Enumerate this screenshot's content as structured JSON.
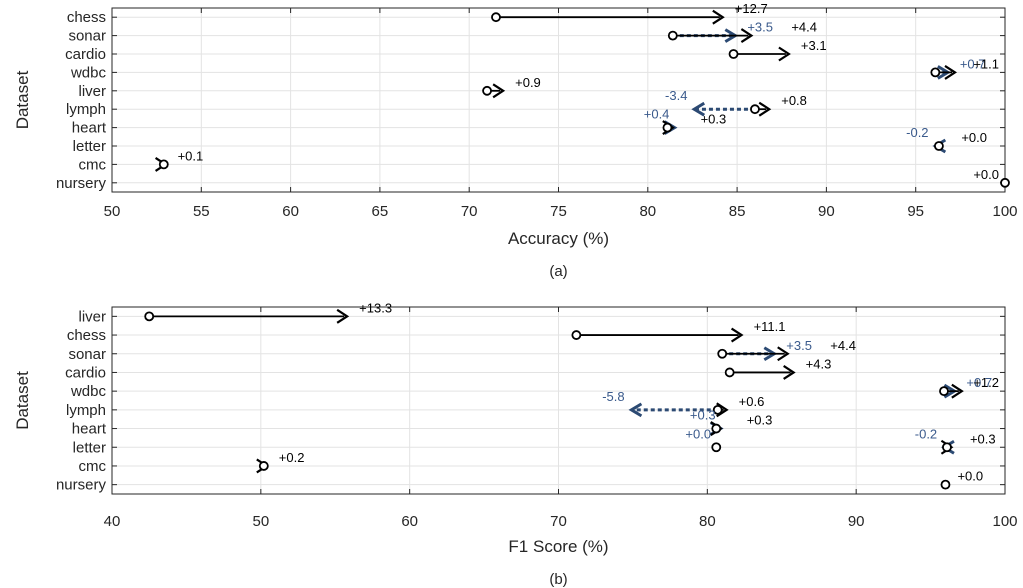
{
  "colors": {
    "solid": "#000000",
    "dashed": "#2c4a73",
    "dashed_label": "#3a5a8c"
  },
  "chart_data": [
    {
      "type": "arrow-dot",
      "panel_label": "(a)",
      "xlabel": "Accuracy (%)",
      "ylabel": "Dataset",
      "xlim": [
        50,
        100
      ],
      "xticks": [
        "50",
        "55",
        "60",
        "65",
        "70",
        "75",
        "80",
        "85",
        "90",
        "95",
        "100"
      ],
      "grid": true,
      "categories": [
        "chess",
        "sonar",
        "cardio",
        "wdbc",
        "liver",
        "lymph",
        "heart",
        "letter",
        "cmc",
        "nursery"
      ],
      "series": [
        {
          "style": "solid",
          "rows": [
            {
              "dataset": "chess",
              "start": 71.5,
              "end": 84.2,
              "label": "+12.7"
            },
            {
              "dataset": "sonar",
              "start": 81.4,
              "end": 85.8,
              "label": "+4.4"
            },
            {
              "dataset": "cardio",
              "start": 84.8,
              "end": 87.9,
              "label": "+3.1"
            },
            {
              "dataset": "wdbc",
              "start": 96.1,
              "end": 97.2,
              "label": "+1.1"
            },
            {
              "dataset": "liver",
              "start": 71.0,
              "end": 71.9,
              "label": "+0.9"
            },
            {
              "dataset": "lymph",
              "start": 86.0,
              "end": 86.8,
              "label": "+0.8"
            },
            {
              "dataset": "heart",
              "start": 81.1,
              "end": 81.4,
              "label": "+0.3"
            },
            {
              "dataset": "letter",
              "start": 96.3,
              "end": 96.3,
              "label": "+0.0"
            },
            {
              "dataset": "cmc",
              "start": 52.9,
              "end": 53.0,
              "label": "+0.1"
            },
            {
              "dataset": "nursery",
              "start": 100.0,
              "end": 100.0,
              "label": "+0.0"
            }
          ]
        },
        {
          "style": "dashed",
          "rows": [
            {
              "dataset": "sonar",
              "start": 81.4,
              "end": 84.9,
              "label": "+3.5"
            },
            {
              "dataset": "wdbc",
              "start": 96.1,
              "end": 96.8,
              "label": "+0.7"
            },
            {
              "dataset": "lymph",
              "start": 86.0,
              "end": 82.6,
              "label": "-3.4"
            },
            {
              "dataset": "heart",
              "start": 81.1,
              "end": 81.5,
              "label": "+0.4"
            },
            {
              "dataset": "letter",
              "start": 96.3,
              "end": 96.1,
              "label": "-0.2"
            }
          ]
        }
      ]
    },
    {
      "type": "arrow-dot",
      "panel_label": "(b)",
      "xlabel": "F1 Score (%)",
      "ylabel": "Dataset",
      "xlim": [
        40,
        100
      ],
      "xticks": [
        "40",
        "50",
        "60",
        "70",
        "80",
        "90",
        "100"
      ],
      "grid": true,
      "categories": [
        "liver",
        "chess",
        "sonar",
        "cardio",
        "wdbc",
        "lymph",
        "heart",
        "letter",
        "cmc",
        "nursery"
      ],
      "series": [
        {
          "style": "solid",
          "rows": [
            {
              "dataset": "liver",
              "start": 42.5,
              "end": 55.8,
              "label": "+13.3"
            },
            {
              "dataset": "chess",
              "start": 71.2,
              "end": 82.3,
              "label": "+11.1"
            },
            {
              "dataset": "sonar",
              "start": 81.0,
              "end": 85.4,
              "label": "+4.4"
            },
            {
              "dataset": "cardio",
              "start": 81.5,
              "end": 85.8,
              "label": "+4.3"
            },
            {
              "dataset": "wdbc",
              "start": 95.9,
              "end": 97.1,
              "label": "+1.2"
            },
            {
              "dataset": "lymph",
              "start": 80.7,
              "end": 81.3,
              "label": "+0.6"
            },
            {
              "dataset": "heart",
              "start": 80.6,
              "end": 80.9,
              "label": "+0.3"
            },
            {
              "dataset": "letter",
              "start": 96.1,
              "end": 96.4,
              "label": "+0.3"
            },
            {
              "dataset": "cmc",
              "start": 50.2,
              "end": 50.4,
              "label": "+0.2"
            },
            {
              "dataset": "nursery",
              "start": 96.0,
              "end": 96.0,
              "label": "+0.0"
            }
          ]
        },
        {
          "style": "dashed",
          "rows": [
            {
              "dataset": "sonar",
              "start": 81.0,
              "end": 84.5,
              "label": "+3.5"
            },
            {
              "dataset": "wdbc",
              "start": 95.9,
              "end": 96.6,
              "label": "+0.7"
            },
            {
              "dataset": "lymph",
              "start": 80.7,
              "end": 74.9,
              "label": "-5.8"
            },
            {
              "dataset": "heart",
              "start": 80.6,
              "end": 80.9,
              "label": "+0.3"
            },
            {
              "dataset": "letter",
              "start": 96.1,
              "end": 95.9,
              "label": "-0.2"
            },
            {
              "dataset": "letter",
              "start": 80.6,
              "end": 80.6,
              "label": "+0.0"
            }
          ]
        }
      ]
    }
  ]
}
